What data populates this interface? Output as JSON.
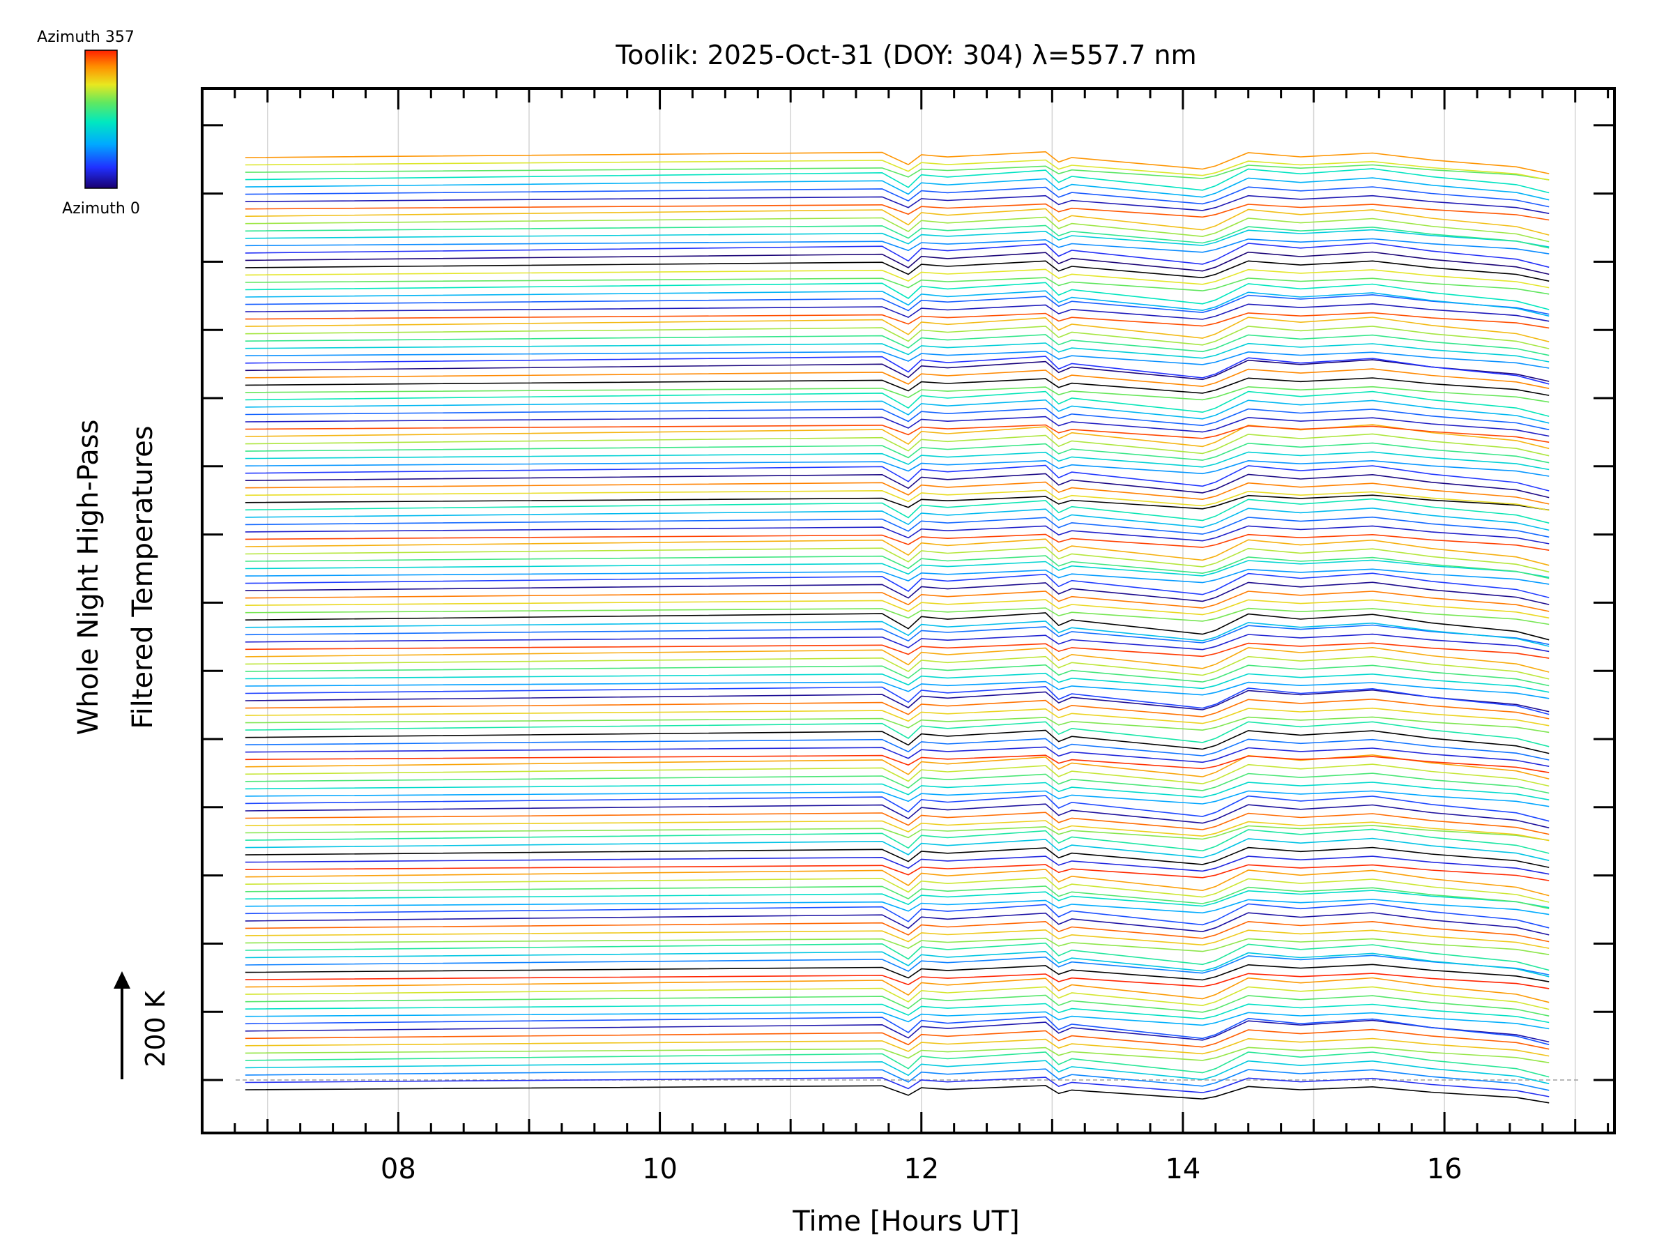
{
  "chart_data": {
    "type": "line",
    "title": "Toolik: 2025-Oct-31 (DOY: 304) λ=557.7 nm",
    "xlabel": "Time [Hours UT]",
    "ylabel_line1": "Whole Night High-Pass",
    "ylabel_line2": "Filtered Temperatures",
    "xlim": [
      6.5,
      17.3
    ],
    "x_major_ticks": [
      8,
      10,
      12,
      14,
      16
    ],
    "x_tick_labels": [
      "08",
      "10",
      "12",
      "14",
      "16"
    ],
    "x_minor_step": 0.25,
    "colorbar": {
      "top_label": "Azimuth 357",
      "bottom_label": "Azimuth 0",
      "colormap": "rainbow",
      "range": [
        0,
        357
      ]
    },
    "scale_bar": {
      "label": "200 K",
      "value_k": 200
    },
    "baseline_dashed": true,
    "n_traces": 128,
    "trace_times": [
      6.83,
      11.7,
      11.9,
      12.0,
      12.2,
      12.95,
      13.05,
      13.15,
      14.15,
      14.25,
      14.5,
      14.9,
      15.45,
      15.9,
      16.55,
      16.8
    ],
    "trace_shape_k": [
      0,
      8,
      -10,
      5,
      2,
      10,
      -5,
      2,
      -15,
      -10,
      10,
      4,
      10,
      0,
      -10,
      -20
    ],
    "colors": {
      "axis": "#000000",
      "grid": "#d3d3d3",
      "baseline": "#a0a0a0"
    }
  }
}
